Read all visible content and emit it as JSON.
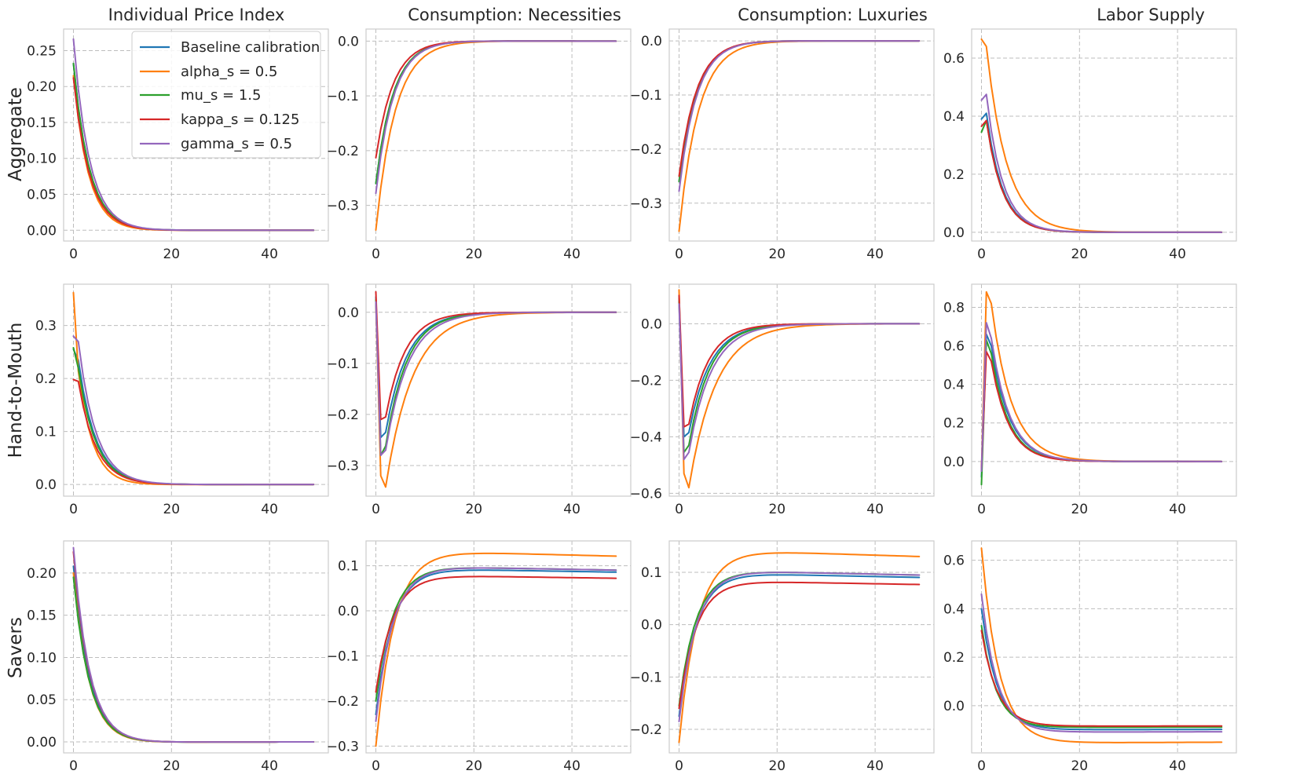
{
  "colors": [
    "#1f77b4",
    "#ff7f0e",
    "#2ca02c",
    "#d62728",
    "#9467bd"
  ],
  "legend": {
    "placement": "upper-right of first panel",
    "entries": [
      "Baseline calibration",
      "alpha_s = 0.5",
      "mu_s = 1.5",
      "kappa_s = 0.125",
      "gamma_s = 0.5"
    ]
  },
  "column_titles": [
    "Individual Price Index",
    "Consumption: Necessities",
    "Consumption: Luxuries",
    "Labor Supply"
  ],
  "row_labels": [
    "Aggregate",
    "Hand-to-Mouth",
    "Savers"
  ],
  "chart_data": [
    {
      "type": "line",
      "row": 0,
      "col": 0,
      "grid": true,
      "xlim": [
        -2,
        52
      ],
      "ylim": [
        -0.015,
        0.28
      ],
      "xticks": [
        0,
        20,
        40
      ],
      "xticklabels": [
        "0",
        "20",
        "40"
      ],
      "yticks": [
        0,
        0.05,
        0.1,
        0.15,
        0.2,
        0.25
      ],
      "yticklabels": [
        "0.00",
        "0.05",
        "0.10",
        "0.15",
        "0.20",
        "0.25"
      ],
      "series": [
        {
          "kind": "decay",
          "y0": 0.232,
          "peak": 0,
          "ny": 0,
          "ss": 0,
          "tau": 3.3,
          "yr": 0,
          "dip": -0.002,
          "taud": 8
        },
        {
          "kind": "decay",
          "y0": 0.215,
          "peak": 0,
          "ny": 0,
          "ss": 0,
          "tau": 3.1,
          "yr": 0,
          "dip": -0.003,
          "taud": 8
        },
        {
          "kind": "decay",
          "y0": 0.232,
          "peak": 0,
          "ny": 0,
          "ss": 0,
          "tau": 3.3,
          "yr": 0,
          "dip": -0.002,
          "taud": 8
        },
        {
          "kind": "decay",
          "y0": 0.212,
          "peak": 0,
          "ny": 0,
          "ss": 0,
          "tau": 3.3,
          "yr": 0,
          "dip": -0.002,
          "taud": 8
        },
        {
          "kind": "decay",
          "y0": 0.266,
          "peak": 0,
          "ny": 0,
          "ss": 0,
          "tau": 3.3,
          "yr": 0,
          "dip": -0.002,
          "taud": 8
        }
      ]
    },
    {
      "type": "line",
      "row": 0,
      "col": 1,
      "grid": true,
      "xlim": [
        -2,
        52
      ],
      "ylim": [
        -0.365,
        0.022
      ],
      "xticks": [
        0,
        20,
        40
      ],
      "xticklabels": [
        "0",
        "20",
        "40"
      ],
      "yticks": [
        -0.3,
        -0.2,
        -0.1,
        0.0
      ],
      "yticklabels": [
        "−0.3",
        "−0.2",
        "−0.1",
        "0.0"
      ],
      "series": [
        {
          "kind": "decay",
          "y0": -0.26,
          "peak": 0,
          "ny": 0,
          "ss": 0,
          "tau": 3.6,
          "yr": 0,
          "dip": 0.003,
          "taud": 10
        },
        {
          "kind": "decay",
          "y0": -0.345,
          "peak": 0,
          "ny": 0,
          "ss": 0,
          "tau": 4.0,
          "yr": 0,
          "dip": 0.003,
          "taud": 10
        },
        {
          "kind": "decay",
          "y0": -0.26,
          "peak": 0,
          "ny": 0,
          "ss": 0,
          "tau": 3.6,
          "yr": 0,
          "dip": 0.003,
          "taud": 10
        },
        {
          "kind": "decay",
          "y0": -0.213,
          "peak": 0,
          "ny": 0,
          "ss": 0,
          "tau": 3.6,
          "yr": 0,
          "dip": 0.003,
          "taud": 10
        },
        {
          "kind": "decay",
          "y0": -0.278,
          "peak": 0,
          "ny": 0,
          "ss": 0,
          "tau": 3.6,
          "yr": 0,
          "dip": 0.003,
          "taud": 10
        }
      ]
    },
    {
      "type": "line",
      "row": 0,
      "col": 2,
      "grid": true,
      "xlim": [
        -2,
        52
      ],
      "ylim": [
        -0.37,
        0.022
      ],
      "xticks": [
        0,
        20,
        40
      ],
      "xticklabels": [
        "0",
        "20",
        "40"
      ],
      "yticks": [
        -0.3,
        -0.2,
        -0.1,
        0.0
      ],
      "yticklabels": [
        "−0.3",
        "−0.2",
        "−0.1",
        "0.0"
      ],
      "series": [
        {
          "kind": "decay",
          "y0": -0.26,
          "peak": 0,
          "ny": 0,
          "ss": 0,
          "tau": 3.6,
          "yr": 0,
          "dip": 0.003,
          "taud": 10
        },
        {
          "kind": "decay",
          "y0": -0.352,
          "peak": 0,
          "ny": 0,
          "ss": 0,
          "tau": 4.0,
          "yr": 0,
          "dip": 0.003,
          "taud": 10
        },
        {
          "kind": "decay",
          "y0": -0.26,
          "peak": 0,
          "ny": 0,
          "ss": 0,
          "tau": 3.6,
          "yr": 0,
          "dip": 0.003,
          "taud": 10
        },
        {
          "kind": "decay",
          "y0": -0.25,
          "peak": 0,
          "ny": 0,
          "ss": 0,
          "tau": 3.6,
          "yr": 0,
          "dip": 0.003,
          "taud": 10
        },
        {
          "kind": "decay",
          "y0": -0.278,
          "peak": 0,
          "ny": 0,
          "ss": 0,
          "tau": 3.6,
          "yr": 0,
          "dip": 0.003,
          "taud": 10
        }
      ]
    },
    {
      "type": "line",
      "row": 0,
      "col": 3,
      "grid": true,
      "xlim": [
        -2,
        52
      ],
      "ylim": [
        -0.03,
        0.7
      ],
      "xticks": [
        0,
        20,
        40
      ],
      "xticklabels": [
        "0",
        "20",
        "40"
      ],
      "yticks": [
        0.0,
        0.2,
        0.4,
        0.6
      ],
      "yticklabels": [
        "0.0",
        "0.2",
        "0.4",
        "0.6"
      ],
      "series": [
        {
          "kind": "peak",
          "y0": 0.39,
          "peak": 0.41,
          "ny": 0,
          "ss": 0,
          "tau": 3.3,
          "yr": 0,
          "dip": 0,
          "taud": 8
        },
        {
          "kind": "peak",
          "y0": 0.665,
          "peak": 0.64,
          "ny": 0,
          "ss": 0,
          "tau": 4.2,
          "yr": 0,
          "dip": 0,
          "taud": 8
        },
        {
          "kind": "peak",
          "y0": 0.345,
          "peak": 0.385,
          "ny": 0,
          "ss": 0,
          "tau": 3.3,
          "yr": 0,
          "dip": 0,
          "taud": 8
        },
        {
          "kind": "peak",
          "y0": 0.365,
          "peak": 0.385,
          "ny": 0,
          "ss": 0,
          "tau": 3.3,
          "yr": 0,
          "dip": 0,
          "taud": 8
        },
        {
          "kind": "peak",
          "y0": 0.455,
          "peak": 0.475,
          "ny": 0,
          "ss": 0,
          "tau": 3.3,
          "yr": 0,
          "dip": 0,
          "taud": 8
        }
      ]
    },
    {
      "type": "line",
      "row": 1,
      "col": 0,
      "grid": true,
      "xlim": [
        -2,
        52
      ],
      "ylim": [
        -0.022,
        0.378
      ],
      "xticks": [
        0,
        20,
        40
      ],
      "xticklabels": [
        "0",
        "20",
        "40"
      ],
      "yticks": [
        0.0,
        0.1,
        0.2,
        0.3
      ],
      "yticklabels": [
        "0.0",
        "0.1",
        "0.2",
        "0.3"
      ],
      "series": [
        {
          "kind": "peak",
          "y0": 0.255,
          "peak": 0.235,
          "ny": 0,
          "ss": 0,
          "tau": 3.6,
          "yr": 0,
          "dip": -0.002,
          "taud": 8
        },
        {
          "kind": "peak",
          "y0": 0.362,
          "peak": 0.215,
          "ny": 0,
          "ss": 0,
          "tau": 3.0,
          "yr": 0,
          "dip": -0.004,
          "taud": 8
        },
        {
          "kind": "peak",
          "y0": 0.258,
          "peak": 0.22,
          "ny": 0,
          "ss": 0,
          "tau": 3.6,
          "yr": 0,
          "dip": -0.002,
          "taud": 8
        },
        {
          "kind": "peak",
          "y0": 0.198,
          "peak": 0.195,
          "ny": 0,
          "ss": 0,
          "tau": 3.6,
          "yr": 0,
          "dip": -0.002,
          "taud": 8
        },
        {
          "kind": "peak",
          "y0": 0.28,
          "peak": 0.27,
          "ny": 0,
          "ss": 0,
          "tau": 3.6,
          "yr": 0,
          "dip": -0.002,
          "taud": 8
        }
      ]
    },
    {
      "type": "line",
      "row": 1,
      "col": 1,
      "grid": true,
      "xlim": [
        -2,
        52
      ],
      "ylim": [
        -0.36,
        0.055
      ],
      "xticks": [
        0,
        20,
        40
      ],
      "xticklabels": [
        "0",
        "20",
        "40"
      ],
      "yticks": [
        -0.3,
        -0.2,
        -0.1,
        0.0
      ],
      "yticklabels": [
        "−0.3",
        "−0.2",
        "−0.1",
        "0.0"
      ],
      "series": [
        {
          "kind": "spike",
          "y0": 0.03,
          "peak": -0.245,
          "ny": -0.235,
          "ss": 0,
          "tau": 4.3,
          "yr": 0,
          "dip": 0,
          "taud": 8
        },
        {
          "kind": "spike",
          "y0": 0.02,
          "peak": -0.32,
          "ny": -0.342,
          "ss": 0,
          "tau": 5.5,
          "yr": 0,
          "dip": 0,
          "taud": 8
        },
        {
          "kind": "spike",
          "y0": 0.025,
          "peak": -0.28,
          "ny": -0.262,
          "ss": 0,
          "tau": 4.3,
          "yr": 0,
          "dip": 0,
          "taud": 8
        },
        {
          "kind": "spike",
          "y0": 0.04,
          "peak": -0.21,
          "ny": -0.205,
          "ss": 0,
          "tau": 4.0,
          "yr": 0,
          "dip": 0,
          "taud": 8
        },
        {
          "kind": "spike",
          "y0": 0.02,
          "peak": -0.28,
          "ny": -0.27,
          "ss": 0,
          "tau": 4.6,
          "yr": 0,
          "dip": 0,
          "taud": 8
        }
      ]
    },
    {
      "type": "line",
      "row": 1,
      "col": 2,
      "grid": true,
      "xlim": [
        -2,
        52
      ],
      "ylim": [
        -0.61,
        0.14
      ],
      "xticks": [
        0,
        20,
        40
      ],
      "xticklabels": [
        "0",
        "20",
        "40"
      ],
      "yticks": [
        -0.6,
        -0.4,
        -0.2,
        0.0
      ],
      "yticklabels": [
        "−0.6",
        "−0.4",
        "−0.2",
        "0.0"
      ],
      "series": [
        {
          "kind": "spike",
          "y0": 0.09,
          "peak": -0.4,
          "ny": -0.385,
          "ss": 0,
          "tau": 4.3,
          "yr": 0,
          "dip": 0,
          "taud": 8
        },
        {
          "kind": "spike",
          "y0": 0.12,
          "peak": -0.53,
          "ny": -0.58,
          "ss": 0,
          "tau": 5.5,
          "yr": 0,
          "dip": 0,
          "taud": 8
        },
        {
          "kind": "spike",
          "y0": 0.08,
          "peak": -0.455,
          "ny": -0.43,
          "ss": 0,
          "tau": 4.3,
          "yr": 0,
          "dip": 0,
          "taud": 8
        },
        {
          "kind": "spike",
          "y0": 0.1,
          "peak": -0.365,
          "ny": -0.355,
          "ss": 0,
          "tau": 4.0,
          "yr": 0,
          "dip": 0,
          "taud": 8
        },
        {
          "kind": "spike",
          "y0": 0.07,
          "peak": -0.48,
          "ny": -0.455,
          "ss": 0,
          "tau": 4.6,
          "yr": 0,
          "dip": 0,
          "taud": 8
        }
      ]
    },
    {
      "type": "line",
      "row": 1,
      "col": 3,
      "grid": true,
      "xlim": [
        -2,
        52
      ],
      "ylim": [
        -0.18,
        0.92
      ],
      "xticks": [
        0,
        20,
        40
      ],
      "xticklabels": [
        "0",
        "20",
        "40"
      ],
      "yticks": [
        0.0,
        0.2,
        0.4,
        0.6,
        0.8
      ],
      "yticklabels": [
        "0.0",
        "0.2",
        "0.4",
        "0.6",
        "0.8"
      ],
      "series": [
        {
          "kind": "spike",
          "y0": -0.08,
          "peak": 0.66,
          "ny": 0.6,
          "ss": 0,
          "tau": 3.8,
          "yr": 0,
          "dip": 0,
          "taud": 8
        },
        {
          "kind": "spike",
          "y0": -0.05,
          "peak": 0.88,
          "ny": 0.82,
          "ss": 0,
          "tau": 4.2,
          "yr": 0,
          "dip": 0,
          "taud": 8
        },
        {
          "kind": "spike",
          "y0": -0.12,
          "peak": 0.63,
          "ny": 0.56,
          "ss": 0,
          "tau": 3.6,
          "yr": 0,
          "dip": 0,
          "taud": 8
        },
        {
          "kind": "spike",
          "y0": -0.04,
          "peak": 0.57,
          "ny": 0.52,
          "ss": 0,
          "tau": 3.6,
          "yr": 0,
          "dip": 0,
          "taud": 8
        },
        {
          "kind": "spike",
          "y0": -0.05,
          "peak": 0.72,
          "ny": 0.64,
          "ss": 0,
          "tau": 3.8,
          "yr": 0,
          "dip": 0,
          "taud": 8
        }
      ]
    },
    {
      "type": "line",
      "row": 2,
      "col": 0,
      "grid": true,
      "xlim": [
        -2,
        52
      ],
      "ylim": [
        -0.013,
        0.238
      ],
      "xticks": [
        0,
        20,
        40
      ],
      "xticklabels": [
        "0",
        "20",
        "40"
      ],
      "yticks": [
        0.0,
        0.05,
        0.1,
        0.15,
        0.2
      ],
      "yticklabels": [
        "0.00",
        "0.05",
        "0.10",
        "0.15",
        "0.20"
      ],
      "series": [
        {
          "kind": "decay",
          "y0": 0.208,
          "peak": 0,
          "ny": 0,
          "ss": 0,
          "tau": 3.3,
          "yr": 0,
          "dip": -0.003,
          "taud": 10
        },
        {
          "kind": "decay",
          "y0": 0.2,
          "peak": 0,
          "ny": 0,
          "ss": 0,
          "tau": 3.2,
          "yr": 0,
          "dip": -0.003,
          "taud": 10
        },
        {
          "kind": "decay",
          "y0": 0.195,
          "peak": 0,
          "ny": 0,
          "ss": 0,
          "tau": 3.3,
          "yr": 0,
          "dip": -0.003,
          "taud": 10
        },
        {
          "kind": "decay",
          "y0": 0.225,
          "peak": 0,
          "ny": 0,
          "ss": 0,
          "tau": 3.3,
          "yr": 0,
          "dip": -0.003,
          "taud": 10
        },
        {
          "kind": "decay",
          "y0": 0.23,
          "peak": 0,
          "ny": 0,
          "ss": 0,
          "tau": 3.3,
          "yr": 0,
          "dip": -0.003,
          "taud": 10
        }
      ]
    },
    {
      "type": "line",
      "row": 2,
      "col": 1,
      "grid": true,
      "xlim": [
        -2,
        52
      ],
      "ylim": [
        -0.315,
        0.155
      ],
      "xticks": [
        0,
        20,
        40
      ],
      "xticklabels": [
        "0",
        "20",
        "40"
      ],
      "yticks": [
        -0.3,
        -0.2,
        -0.1,
        0.0,
        0.1
      ],
      "yticklabels": [
        "−0.3",
        "−0.2",
        "−0.1",
        "0.0",
        "0.1"
      ],
      "series": [
        {
          "kind": "hump",
          "y0": -0.23,
          "peak": 0,
          "ny": 0,
          "ss": 0.095,
          "tau": 3.5,
          "yr": 0.0021,
          "dip": 0,
          "taud": 8
        },
        {
          "kind": "hump",
          "y0": -0.3,
          "peak": 0,
          "ny": 0,
          "ss": 0.135,
          "tau": 3.8,
          "yr": 0.0022,
          "dip": 0,
          "taud": 8
        },
        {
          "kind": "hump",
          "y0": -0.2,
          "peak": 0,
          "ny": 0,
          "ss": 0.1,
          "tau": 3.5,
          "yr": 0.0021,
          "dip": 0,
          "taud": 8
        },
        {
          "kind": "hump",
          "y0": -0.18,
          "peak": 0,
          "ny": 0,
          "ss": 0.08,
          "tau": 3.5,
          "yr": 0.0021,
          "dip": 0,
          "taud": 8
        },
        {
          "kind": "hump",
          "y0": -0.245,
          "peak": 0,
          "ny": 0,
          "ss": 0.1,
          "tau": 3.5,
          "yr": 0.0021,
          "dip": 0,
          "taud": 8
        }
      ]
    },
    {
      "type": "line",
      "row": 2,
      "col": 2,
      "grid": true,
      "xlim": [
        -2,
        52
      ],
      "ylim": [
        -0.245,
        0.16
      ],
      "xticks": [
        0,
        20,
        40
      ],
      "xticklabels": [
        "0",
        "20",
        "40"
      ],
      "yticks": [
        -0.2,
        -0.1,
        0.0,
        0.1
      ],
      "yticklabels": [
        "−0.2",
        "−0.1",
        "0.0",
        "0.1"
      ],
      "series": [
        {
          "kind": "hump",
          "y0": -0.175,
          "peak": 0,
          "ny": 0,
          "ss": 0.1,
          "tau": 3.5,
          "yr": 0.0021,
          "dip": 0,
          "taud": 8
        },
        {
          "kind": "hump",
          "y0": -0.225,
          "peak": 0,
          "ny": 0,
          "ss": 0.145,
          "tau": 3.8,
          "yr": 0.0022,
          "dip": 0,
          "taud": 8
        },
        {
          "kind": "hump",
          "y0": -0.155,
          "peak": 0,
          "ny": 0,
          "ss": 0.105,
          "tau": 3.5,
          "yr": 0.0021,
          "dip": 0,
          "taud": 8
        },
        {
          "kind": "hump",
          "y0": -0.16,
          "peak": 0,
          "ny": 0,
          "ss": 0.085,
          "tau": 3.5,
          "yr": 0.0021,
          "dip": 0,
          "taud": 8
        },
        {
          "kind": "hump",
          "y0": -0.185,
          "peak": 0,
          "ny": 0,
          "ss": 0.105,
          "tau": 3.5,
          "yr": 0.0021,
          "dip": 0,
          "taud": 8
        }
      ]
    },
    {
      "type": "line",
      "row": 2,
      "col": 3,
      "grid": true,
      "xlim": [
        -2,
        52
      ],
      "ylim": [
        -0.195,
        0.68
      ],
      "xticks": [
        0,
        20,
        40
      ],
      "xticklabels": [
        "0",
        "20",
        "40"
      ],
      "yticks": [
        0.0,
        0.2,
        0.4,
        0.6
      ],
      "yticklabels": [
        "0.0",
        "0.2",
        "0.4",
        "0.6"
      ],
      "series": [
        {
          "kind": "trough",
          "y0": 0.4,
          "peak": 0,
          "ny": 0,
          "ss": -0.1,
          "tau": 3.2,
          "yr": 0.00035,
          "dip": 0,
          "taud": 8
        },
        {
          "kind": "trough",
          "y0": 0.65,
          "peak": 0,
          "ny": 0,
          "ss": -0.155,
          "tau": 3.6,
          "yr": 0.00055,
          "dip": 0,
          "taud": 8
        },
        {
          "kind": "trough",
          "y0": 0.33,
          "peak": 0,
          "ny": 0,
          "ss": -0.09,
          "tau": 3.0,
          "yr": 0.0003,
          "dip": 0,
          "taud": 8
        },
        {
          "kind": "trough",
          "y0": 0.31,
          "peak": 0,
          "ny": 0,
          "ss": -0.085,
          "tau": 3.2,
          "yr": 0.00025,
          "dip": 0,
          "taud": 8
        },
        {
          "kind": "trough",
          "y0": 0.46,
          "peak": 0,
          "ny": 0,
          "ss": -0.11,
          "tau": 3.2,
          "yr": 0.0004,
          "dip": 0,
          "taud": 8
        }
      ]
    }
  ]
}
